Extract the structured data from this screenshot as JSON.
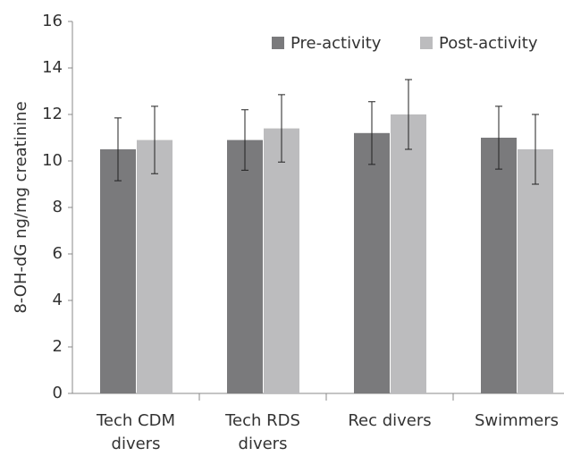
{
  "chart_data": {
    "type": "bar",
    "y_label": "8-OH-dG ng/mg creatinine",
    "categories": [
      "Tech CDM divers",
      "Tech RDS divers",
      "Rec divers",
      "Swimmers"
    ],
    "series": [
      {
        "name": "Pre-activity",
        "color": "#7a7a7c",
        "values": [
          10.5,
          10.9,
          11.2,
          11.0
        ],
        "errors": [
          1.35,
          1.3,
          1.35,
          1.35
        ]
      },
      {
        "name": "Post-activity",
        "color": "#bcbcbe",
        "values": [
          10.9,
          11.4,
          12.0,
          10.5
        ],
        "errors": [
          1.45,
          1.45,
          1.5,
          1.5
        ]
      }
    ],
    "ylim": [
      0,
      16
    ],
    "yticks": [
      0,
      2,
      4,
      6,
      8,
      10,
      12,
      14,
      16
    ],
    "grid": false,
    "legend": "top-right"
  }
}
